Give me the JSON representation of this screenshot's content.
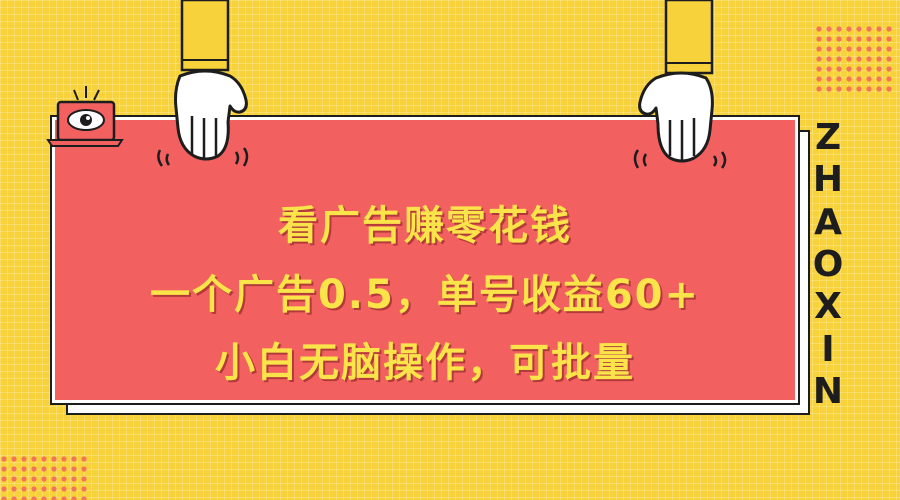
{
  "card": {
    "line1": "看广告赚零花钱",
    "line2": "一个广告0.5，单号收益60+",
    "line3": "小白无脑操作，可批量"
  },
  "side_letters": [
    "Z",
    "H",
    "A",
    "O",
    "X",
    "I",
    "N"
  ],
  "icons": {
    "eye": "eye-icon",
    "left_hand": "hand-icon",
    "right_hand": "hand-icon"
  },
  "colors": {
    "background": "#F7D23A",
    "card": "#F26060",
    "headline": "#FBE34A",
    "dots": "#F2745A"
  }
}
